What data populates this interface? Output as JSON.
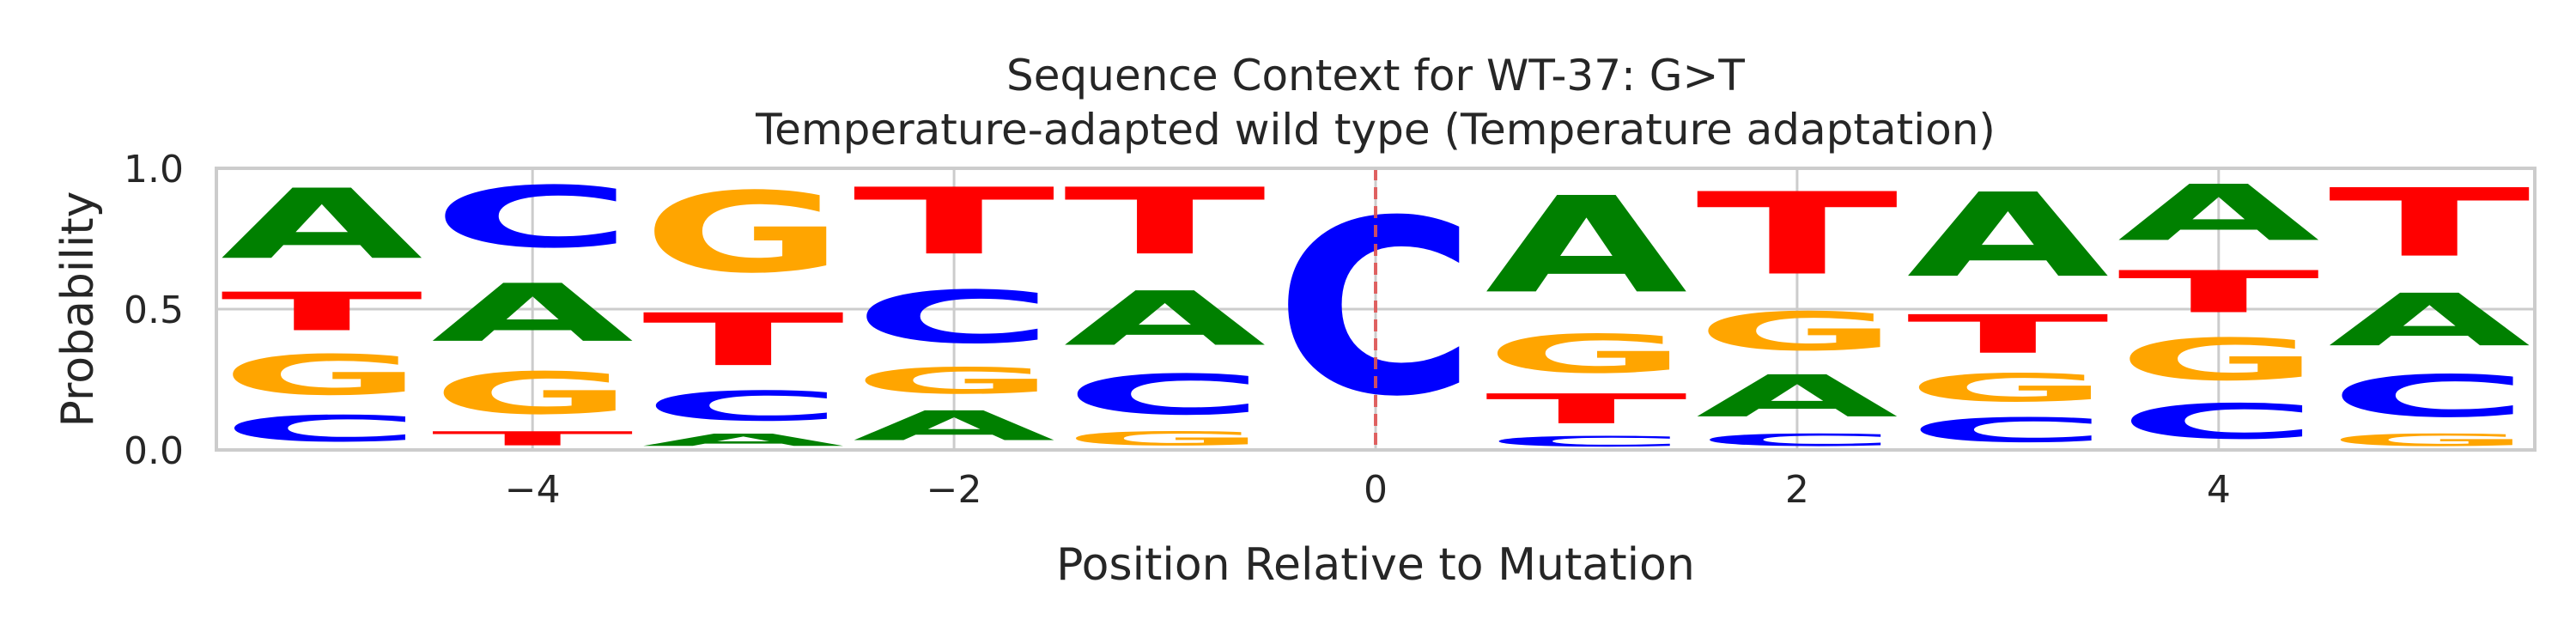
{
  "chart_data": {
    "type": "sequence-logo",
    "title": "Sequence Context for WT-37: G>T",
    "subtitle": "Temperature-adapted wild type (Temperature adaptation)",
    "xlabel": "Position Relative to Mutation",
    "ylabel": "Probability",
    "xlim": [
      -5.5,
      5.5
    ],
    "ylim": [
      0,
      1
    ],
    "xticks": [
      -4,
      -2,
      0,
      2,
      4
    ],
    "xtick_labels": [
      "−4",
      "−2",
      "0",
      "2",
      "4"
    ],
    "yticks": [
      0,
      0.5,
      1
    ],
    "ytick_labels": [
      "0.0",
      "0.5",
      "1.0"
    ],
    "grid": true,
    "mutation_line": {
      "x": 0,
      "color": "#e05555",
      "style": "dashed"
    },
    "colors": {
      "A": "#008000",
      "C": "#0000ff",
      "G": "#ffa500",
      "T": "#ff0000"
    },
    "positions": [
      {
        "x": -5,
        "stack": [
          {
            "base": "C",
            "p": 0.15
          },
          {
            "base": "G",
            "p": 0.23
          },
          {
            "base": "T",
            "p": 0.22
          },
          {
            "base": "A",
            "p": 0.4
          }
        ]
      },
      {
        "x": -4,
        "stack": [
          {
            "base": "T",
            "p": 0.08
          },
          {
            "base": "G",
            "p": 0.24
          },
          {
            "base": "A",
            "p": 0.33
          },
          {
            "base": "C",
            "p": 0.35
          }
        ]
      },
      {
        "x": -3,
        "stack": [
          {
            "base": "A",
            "p": 0.07
          },
          {
            "base": "C",
            "p": 0.17
          },
          {
            "base": "T",
            "p": 0.3
          },
          {
            "base": "G",
            "p": 0.46
          }
        ]
      },
      {
        "x": -2,
        "stack": [
          {
            "base": "A",
            "p": 0.17
          },
          {
            "base": "G",
            "p": 0.15
          },
          {
            "base": "C",
            "p": 0.3
          },
          {
            "base": "T",
            "p": 0.38
          }
        ]
      },
      {
        "x": -1,
        "stack": [
          {
            "base": "G",
            "p": 0.08
          },
          {
            "base": "C",
            "p": 0.23
          },
          {
            "base": "A",
            "p": 0.31
          },
          {
            "base": "T",
            "p": 0.38
          }
        ]
      },
      {
        "x": 0,
        "stack": [
          {
            "base": "C",
            "p": 1.0
          }
        ]
      },
      {
        "x": 1,
        "stack": [
          {
            "base": "C",
            "p": 0.06
          },
          {
            "base": "T",
            "p": 0.17
          },
          {
            "base": "G",
            "p": 0.22
          },
          {
            "base": "A",
            "p": 0.55
          }
        ]
      },
      {
        "x": 2,
        "stack": [
          {
            "base": "C",
            "p": 0.07
          },
          {
            "base": "A",
            "p": 0.24
          },
          {
            "base": "G",
            "p": 0.22
          },
          {
            "base": "T",
            "p": 0.47
          }
        ]
      },
      {
        "x": 3,
        "stack": [
          {
            "base": "C",
            "p": 0.14
          },
          {
            "base": "G",
            "p": 0.16
          },
          {
            "base": "T",
            "p": 0.22
          },
          {
            "base": "A",
            "p": 0.48
          }
        ]
      },
      {
        "x": 4,
        "stack": [
          {
            "base": "C",
            "p": 0.2
          },
          {
            "base": "G",
            "p": 0.24
          },
          {
            "base": "T",
            "p": 0.24
          },
          {
            "base": "A",
            "p": 0.32
          }
        ]
      },
      {
        "x": 5,
        "stack": [
          {
            "base": "G",
            "p": 0.07
          },
          {
            "base": "C",
            "p": 0.24
          },
          {
            "base": "A",
            "p": 0.3
          },
          {
            "base": "T",
            "p": 0.39
          }
        ]
      }
    ]
  }
}
